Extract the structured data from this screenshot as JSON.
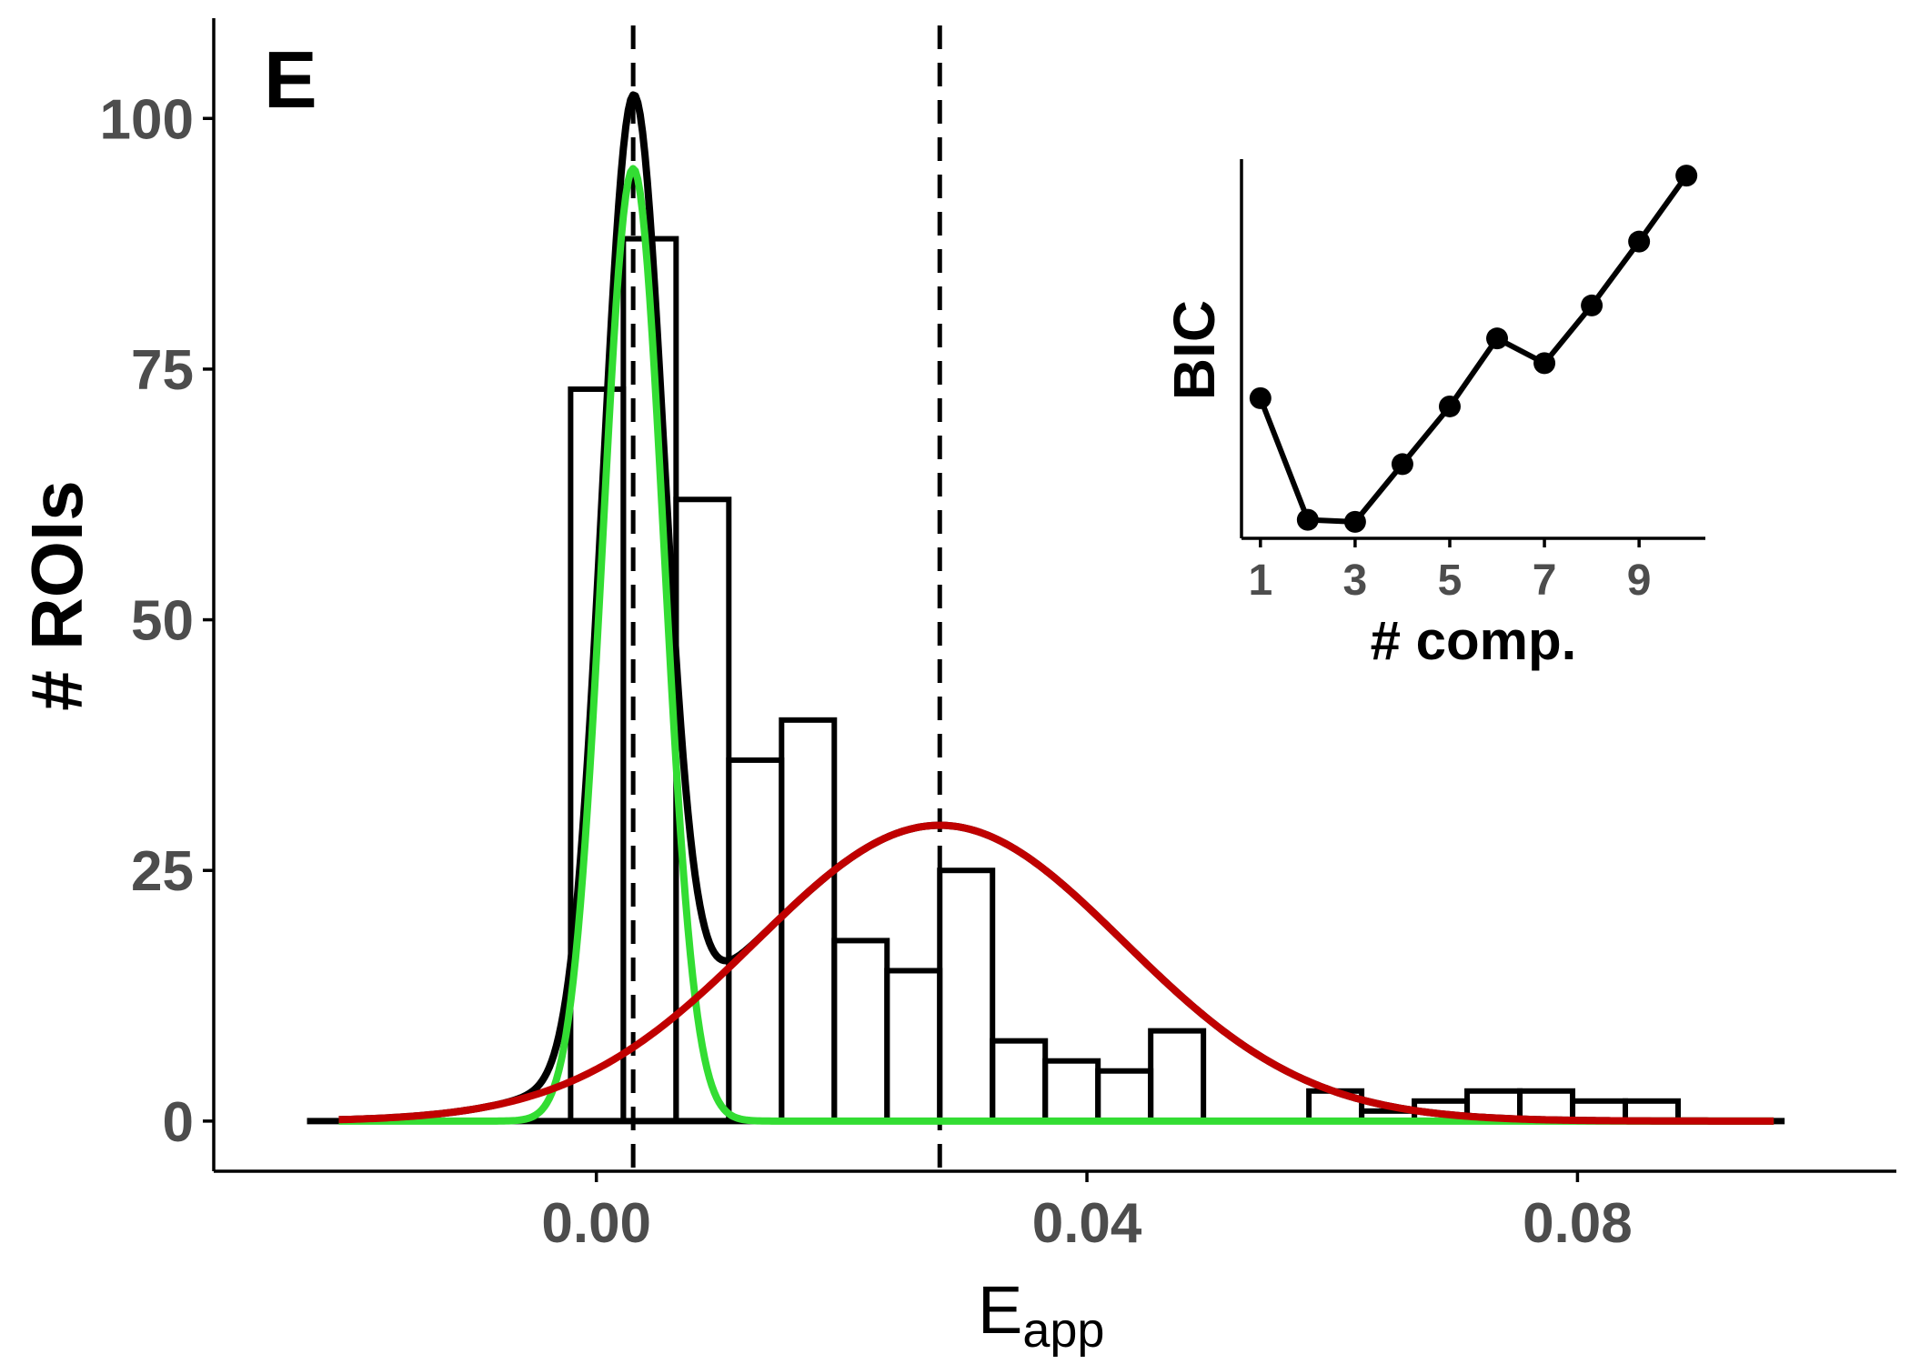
{
  "panel_label": "E",
  "colors": {
    "mixture": "#000000",
    "component_low": "#33dd33",
    "component_high": "#c00000",
    "bars": "#000000",
    "tick_text": "#4d4d4d"
  },
  "chart_data": [
    {
      "type": "bar",
      "role": "main-histogram-with-mixture-fit",
      "xlabel_main": "E",
      "xlabel_sub": "app",
      "ylabel": "# ROIs",
      "xlim": [
        -0.0312,
        0.106
      ],
      "ylim": [
        -5,
        110
      ],
      "x_ticks": [
        0.0,
        0.04,
        0.08
      ],
      "x_tick_labels": [
        "0.00",
        "0.04",
        "0.08"
      ],
      "y_ticks": [
        0,
        25,
        50,
        75,
        100
      ],
      "y_tick_labels": [
        "0",
        "25",
        "50",
        "75",
        "100"
      ],
      "grid": false,
      "bin_width": 0.0043,
      "bin_starts": [
        -0.0021,
        0.0022,
        0.0065,
        0.0108,
        0.0151,
        0.0194,
        0.0237,
        0.028,
        0.0323,
        0.0366,
        0.0409,
        0.0452,
        0.0495,
        0.0538,
        0.0581,
        0.0624,
        0.0667,
        0.071,
        0.0753,
        0.0796,
        0.0839
      ],
      "counts": [
        73,
        88,
        62,
        36,
        40,
        18,
        15,
        25,
        8,
        6,
        5,
        9,
        0,
        0,
        3,
        1,
        2,
        3,
        3,
        2,
        2
      ],
      "vlines": [
        0.003,
        0.028
      ],
      "curve_x_range": [
        -0.021,
        0.096
      ],
      "components": [
        {
          "mean": 0.003,
          "sd": 0.0025,
          "peak": 95
        },
        {
          "mean": 0.028,
          "sd": 0.015,
          "peak": 29.5
        }
      ]
    },
    {
      "type": "line",
      "role": "inset-bic",
      "xlabel": "# comp.",
      "ylabel": "BIC",
      "x": [
        1,
        2,
        3,
        4,
        5,
        6,
        7,
        8,
        9,
        10
      ],
      "y": [
        30,
        0.5,
        0,
        14,
        28,
        44.5,
        38.5,
        52.5,
        68,
        84
      ],
      "x_ticks": [
        1,
        3,
        5,
        7,
        9
      ],
      "x_tick_labels": [
        "1",
        "3",
        "5",
        "7",
        "9"
      ],
      "xlim": [
        0.6,
        10.4
      ],
      "ylim": [
        -4,
        88
      ],
      "y_ticks_shown": false
    }
  ]
}
